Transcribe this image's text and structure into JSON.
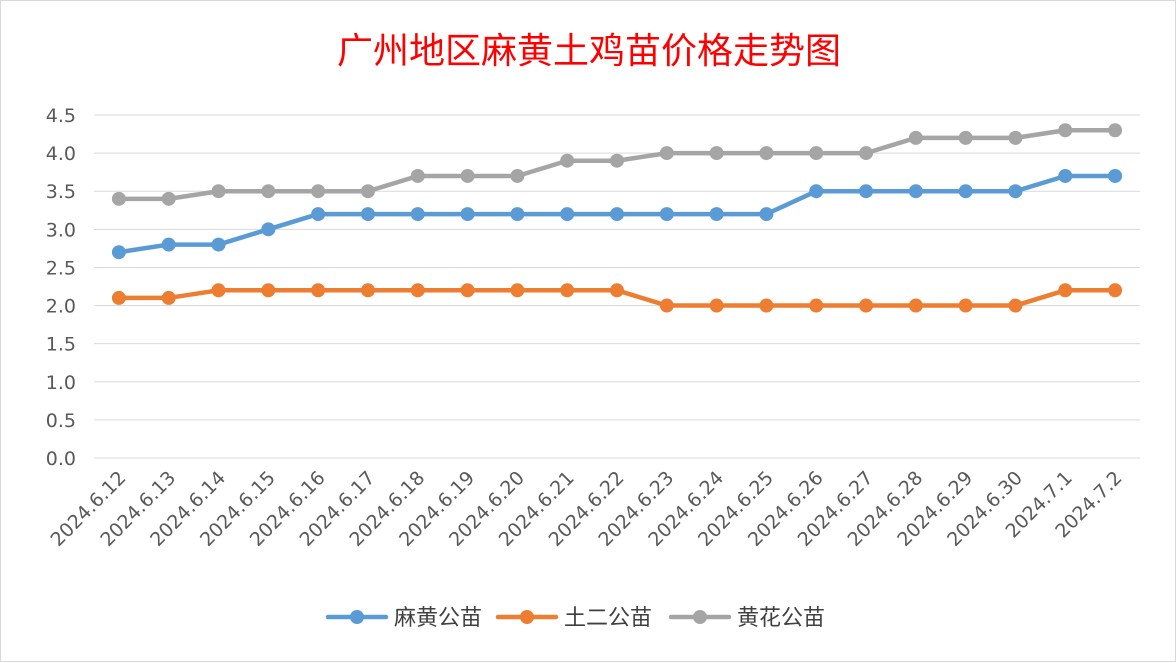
{
  "chart_data": {
    "type": "line",
    "title": "广州地区麻黄土鸡苗价格走势图",
    "xlabel": "",
    "ylabel": "",
    "ylim": [
      0,
      4.5
    ],
    "ytick_step": 0.5,
    "ytick_labels": [
      "0.0",
      "0.5",
      "1.0",
      "1.5",
      "2.0",
      "2.5",
      "3.0",
      "3.5",
      "4.0",
      "4.5"
    ],
    "grid": true,
    "legend_position": "bottom",
    "categories": [
      "2024.6.12",
      "2024.6.13",
      "2024.6.14",
      "2024.6.15",
      "2024.6.16",
      "2024.6.17",
      "2024.6.18",
      "2024.6.19",
      "2024.6.20",
      "2024.6.21",
      "2024.6.22",
      "2024.6.23",
      "2024.6.24",
      "2024.6.25",
      "2024.6.26",
      "2024.6.27",
      "2024.6.28",
      "2024.6.29",
      "2024.6.30",
      "2024.7.1",
      "2024.7.2"
    ],
    "series": [
      {
        "name": "麻黄公苗",
        "color": "#5b9bd5",
        "values": [
          2.7,
          2.8,
          2.8,
          3.0,
          3.2,
          3.2,
          3.2,
          3.2,
          3.2,
          3.2,
          3.2,
          3.2,
          3.2,
          3.2,
          3.5,
          3.5,
          3.5,
          3.5,
          3.5,
          3.7,
          3.7
        ]
      },
      {
        "name": "土二公苗",
        "color": "#ed7d31",
        "values": [
          2.1,
          2.1,
          2.2,
          2.2,
          2.2,
          2.2,
          2.2,
          2.2,
          2.2,
          2.2,
          2.2,
          2.0,
          2.0,
          2.0,
          2.0,
          2.0,
          2.0,
          2.0,
          2.0,
          2.2,
          2.2
        ]
      },
      {
        "name": "黄花公苗",
        "color": "#a5a5a5",
        "values": [
          3.4,
          3.4,
          3.5,
          3.5,
          3.5,
          3.5,
          3.7,
          3.7,
          3.7,
          3.9,
          3.9,
          4.0,
          4.0,
          4.0,
          4.0,
          4.0,
          4.2,
          4.2,
          4.2,
          4.3,
          4.3
        ]
      }
    ]
  }
}
